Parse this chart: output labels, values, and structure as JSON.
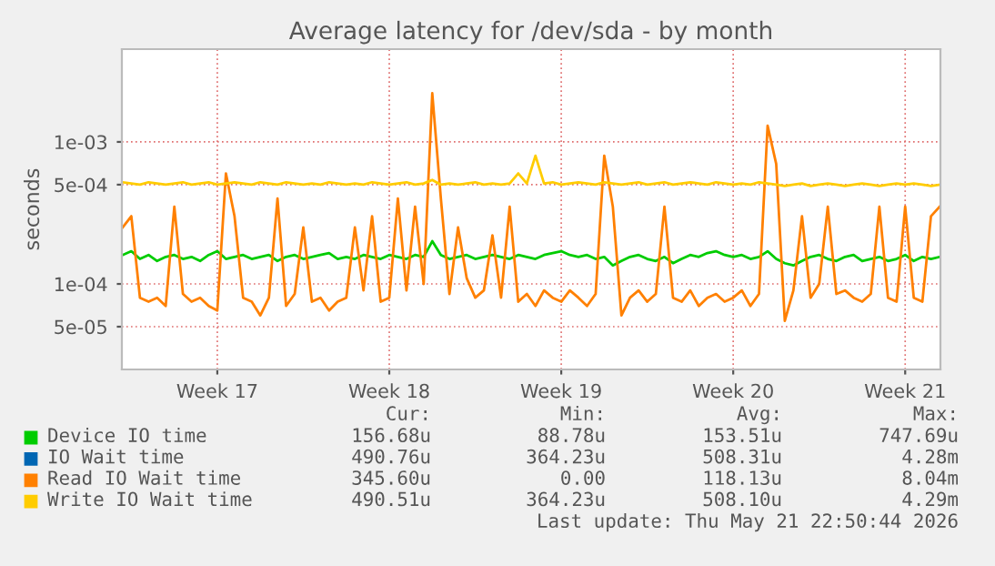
{
  "chart_data": {
    "type": "line",
    "title": "Average latency for /dev/sda - by month",
    "ylabel": "seconds",
    "log": "y",
    "ylim": [
      2.5e-05,
      0.0045
    ],
    "yticks": [
      {
        "value": 5e-05,
        "label": "5e-05"
      },
      {
        "value": 0.0001,
        "label": "1e-04"
      },
      {
        "value": 0.0005,
        "label": "5e-04"
      },
      {
        "value": 0.001,
        "label": "1e-03"
      }
    ],
    "grid": true,
    "legend": "bottom",
    "categories": [
      null,
      null,
      null,
      null,
      null,
      null,
      null,
      null,
      null,
      null,
      null,
      "Week 17",
      null,
      null,
      null,
      null,
      null,
      null,
      null,
      null,
      null,
      null,
      null,
      null,
      null,
      null,
      null,
      null,
      null,
      null,
      null,
      "Week 18",
      null,
      null,
      null,
      null,
      null,
      null,
      null,
      null,
      null,
      null,
      null,
      null,
      null,
      null,
      null,
      null,
      null,
      null,
      null,
      "Week 19",
      null,
      null,
      null,
      null,
      null,
      null,
      null,
      null,
      null,
      null,
      null,
      null,
      null,
      null,
      null,
      null,
      null,
      null,
      null,
      "Week 20",
      null,
      null,
      null,
      null,
      null,
      null,
      null,
      null,
      null,
      null,
      null,
      null,
      null,
      null,
      null,
      null,
      null,
      null,
      null,
      "Week 21",
      null,
      null,
      null,
      null
    ],
    "series": [
      {
        "name": "Device IO time",
        "color": "#00cc00",
        "values": [
          0.00016,
          0.00017,
          0.00015,
          0.00016,
          0.000145,
          0.000155,
          0.00016,
          0.00015,
          0.000155,
          0.000145,
          0.00016,
          0.00017,
          0.00015,
          0.000155,
          0.00016,
          0.00015,
          0.000155,
          0.00016,
          0.000145,
          0.000155,
          0.00016,
          0.00015,
          0.000155,
          0.00016,
          0.000165,
          0.00015,
          0.000155,
          0.00015,
          0.00016,
          0.000155,
          0.00015,
          0.00016,
          0.000155,
          0.00015,
          0.00016,
          0.000155,
          0.0002,
          0.00016,
          0.00015,
          0.000155,
          0.00016,
          0.00015,
          0.000155,
          0.00016,
          0.000155,
          0.00015,
          0.00016,
          0.000155,
          0.00015,
          0.00016,
          0.000165,
          0.00017,
          0.00016,
          0.000155,
          0.00016,
          0.00015,
          0.000155,
          0.000135,
          0.000145,
          0.000155,
          0.00016,
          0.00015,
          0.000145,
          0.000155,
          0.00014,
          0.00015,
          0.00016,
          0.000155,
          0.000165,
          0.00017,
          0.00016,
          0.000155,
          0.00016,
          0.00015,
          0.000155,
          0.00017,
          0.00015,
          0.00014,
          0.000135,
          0.000145,
          0.000155,
          0.00016,
          0.00015,
          0.000145,
          0.000155,
          0.00016,
          0.000145,
          0.00015,
          0.000155,
          0.000145,
          0.00015,
          0.00016,
          0.000145,
          0.000155,
          0.00015,
          0.000155
        ]
      },
      {
        "name": "IO Wait time",
        "color": "#0066b3",
        "values": [
          null,
          null,
          null,
          null,
          null,
          null,
          null,
          null,
          null,
          null,
          null,
          null,
          null,
          null,
          null,
          null,
          null,
          null,
          null,
          null,
          null,
          null,
          null,
          null,
          null,
          null,
          null,
          null,
          null,
          null,
          null,
          null,
          null,
          null,
          null,
          null,
          null,
          null,
          null,
          null,
          null,
          null,
          null,
          null,
          null,
          null,
          null,
          null,
          null,
          null,
          null,
          null,
          null,
          null,
          null,
          null,
          null,
          null,
          null,
          null,
          null,
          null,
          null,
          null,
          null,
          null,
          null,
          null,
          null,
          null,
          null,
          null,
          null,
          null,
          null,
          null,
          null,
          null,
          null,
          null,
          null,
          null,
          null,
          null,
          null,
          null,
          null,
          null,
          null,
          null,
          null,
          null,
          null,
          null,
          null,
          null
        ]
      },
      {
        "name": "Read IO Wait time",
        "color": "#ff8000",
        "values": [
          0.00025,
          0.0003,
          8e-05,
          7.5e-05,
          8e-05,
          7e-05,
          0.00035,
          8.5e-05,
          7.5e-05,
          8e-05,
          7e-05,
          6.5e-05,
          0.0006,
          0.0003,
          8e-05,
          7.5e-05,
          6e-05,
          8e-05,
          0.0004,
          7e-05,
          8.5e-05,
          0.00025,
          7.5e-05,
          8e-05,
          6.5e-05,
          7.5e-05,
          8e-05,
          0.00025,
          9e-05,
          0.0003,
          7.5e-05,
          8e-05,
          0.0004,
          9e-05,
          0.00035,
          0.0001,
          0.0022,
          0.0004,
          8.5e-05,
          0.00025,
          0.00011,
          8e-05,
          9e-05,
          0.00022,
          8e-05,
          0.00035,
          7.5e-05,
          8.5e-05,
          7e-05,
          9e-05,
          8e-05,
          7.5e-05,
          9e-05,
          8e-05,
          7e-05,
          8.5e-05,
          0.0008,
          0.00035,
          6e-05,
          8e-05,
          9e-05,
          7.5e-05,
          8.5e-05,
          0.00035,
          8e-05,
          7.5e-05,
          9e-05,
          7e-05,
          8e-05,
          8.5e-05,
          7.5e-05,
          8e-05,
          9e-05,
          7e-05,
          8.5e-05,
          0.0013,
          0.0007,
          5.5e-05,
          9e-05,
          0.0003,
          8e-05,
          0.0001,
          0.00035,
          8.5e-05,
          9e-05,
          8e-05,
          7.5e-05,
          8.5e-05,
          0.00035,
          8e-05,
          7.5e-05,
          0.00035,
          8e-05,
          7.5e-05,
          0.0003,
          0.00035
        ]
      },
      {
        "name": "Write IO Wait time",
        "color": "#ffcc00",
        "values": [
          0.00052,
          0.00051,
          0.0005,
          0.00052,
          0.00051,
          0.0005,
          0.00051,
          0.00052,
          0.0005,
          0.00051,
          0.00052,
          0.0005,
          0.00051,
          0.00052,
          0.00051,
          0.0005,
          0.00052,
          0.00051,
          0.0005,
          0.00052,
          0.00051,
          0.0005,
          0.00051,
          0.0005,
          0.00052,
          0.00051,
          0.0005,
          0.00051,
          0.0005,
          0.00052,
          0.00051,
          0.0005,
          0.00051,
          0.00052,
          0.0005,
          0.00051,
          0.00054,
          0.0005,
          0.00051,
          0.0005,
          0.00051,
          0.00052,
          0.0005,
          0.00051,
          0.0005,
          0.00051,
          0.0006,
          0.00051,
          0.0008,
          0.00051,
          0.00052,
          0.0005,
          0.00051,
          0.00052,
          0.00051,
          0.0005,
          0.00052,
          0.00051,
          0.0005,
          0.00051,
          0.00052,
          0.0005,
          0.00051,
          0.00052,
          0.0005,
          0.00051,
          0.00052,
          0.00051,
          0.0005,
          0.00052,
          0.00051,
          0.0005,
          0.00051,
          0.0005,
          0.00052,
          0.00051,
          0.0005,
          0.00049,
          0.0005,
          0.00051,
          0.00049,
          0.0005,
          0.00051,
          0.0005,
          0.00049,
          0.0005,
          0.00051,
          0.0005,
          0.00049,
          0.0005,
          0.00051,
          0.0005,
          0.00051,
          0.0005,
          0.00049,
          0.0005
        ]
      }
    ],
    "annotations": [
      "Cur:",
      "Min:",
      "Avg:",
      "Max:",
      "156.68u",
      "88.78u",
      "153.51u",
      "747.69u",
      "490.76u",
      "364.23u",
      "508.31u",
      "4.28m",
      "345.60u",
      "0.00",
      "118.13u",
      "8.04m",
      "490.51u",
      "364.23u",
      "508.10u",
      "4.29m",
      "Last update: Thu May 21 22:50:44 2026"
    ]
  }
}
